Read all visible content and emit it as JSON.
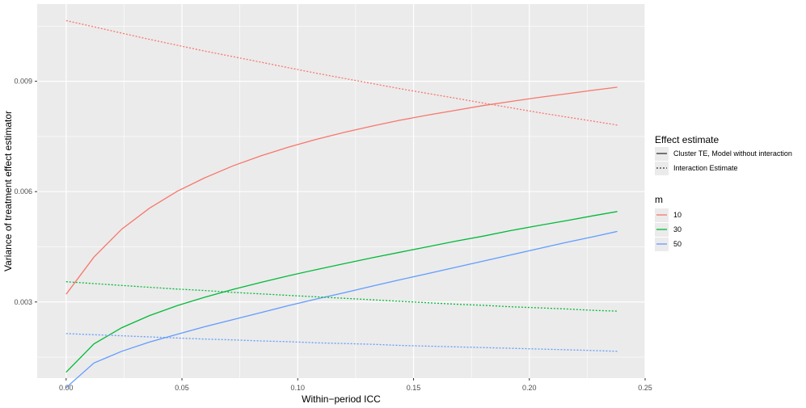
{
  "chart_data": {
    "type": "line",
    "title": "",
    "xlabel": "Within−period ICC",
    "ylabel": "Variance of treatment effect estimator",
    "xlim": [
      -0.0125,
      0.25
    ],
    "ylim": [
      0.00093,
      0.0111
    ],
    "x_ticks": [
      0.0,
      0.05,
      0.1,
      0.15,
      0.2,
      0.25
    ],
    "x_tick_labels": [
      "0.00",
      "0.05",
      "0.10",
      "0.15",
      "0.20",
      "0.25"
    ],
    "y_ticks": [
      0.003,
      0.006,
      0.009
    ],
    "y_tick_labels": [
      "0.003",
      "0.006",
      "0.009"
    ],
    "grid": true,
    "legend_position": "right",
    "x": [
      0.0,
      0.012,
      0.024,
      0.036,
      0.048,
      0.06,
      0.072,
      0.084,
      0.096,
      0.108,
      0.12,
      0.132,
      0.144,
      0.156,
      0.168,
      0.18,
      0.192,
      0.204,
      0.216,
      0.228,
      0.238
    ],
    "series": [
      {
        "linetype": "Cluster TE, Model without interaction",
        "m": "10",
        "color": "#F8766D",
        "dash": "solid",
        "values": [
          0.00321,
          0.00422,
          0.00498,
          0.00555,
          0.00601,
          0.00638,
          0.0067,
          0.00697,
          0.00721,
          0.00742,
          0.00761,
          0.00778,
          0.00794,
          0.00808,
          0.00821,
          0.00834,
          0.00845,
          0.00856,
          0.00866,
          0.00876,
          0.00884
        ]
      },
      {
        "linetype": "Cluster TE, Model without interaction",
        "m": "30",
        "color": "#00BA38",
        "dash": "solid",
        "values": [
          0.00109,
          0.00186,
          0.0023,
          0.00263,
          0.0029,
          0.00313,
          0.00334,
          0.00353,
          0.00371,
          0.00388,
          0.00404,
          0.0042,
          0.00435,
          0.0045,
          0.00465,
          0.00479,
          0.00494,
          0.00508,
          0.00521,
          0.00535,
          0.00546
        ]
      },
      {
        "linetype": "Cluster TE, Model without interaction",
        "m": "50",
        "color": "#619CFF",
        "dash": "solid",
        "values": [
          0.00067,
          0.00134,
          0.00166,
          0.00191,
          0.00212,
          0.00233,
          0.00252,
          0.00271,
          0.0029,
          0.00308,
          0.00325,
          0.00343,
          0.0036,
          0.00377,
          0.00394,
          0.00411,
          0.00428,
          0.00445,
          0.00462,
          0.00478,
          0.00492
        ]
      },
      {
        "linetype": "Interaction Estimate",
        "m": "10",
        "color": "#F8766D",
        "dash": "dotted",
        "values": [
          0.01065,
          0.01048,
          0.01031,
          0.01014,
          0.00998,
          0.00982,
          0.00967,
          0.00952,
          0.00937,
          0.00922,
          0.00908,
          0.00894,
          0.0088,
          0.00867,
          0.00854,
          0.00841,
          0.00828,
          0.00815,
          0.00803,
          0.00791,
          0.00781
        ]
      },
      {
        "linetype": "Interaction Estimate",
        "m": "30",
        "color": "#00BA38",
        "dash": "dotted",
        "values": [
          0.00355,
          0.0035,
          0.00345,
          0.0034,
          0.00335,
          0.00331,
          0.00326,
          0.00322,
          0.00318,
          0.00314,
          0.0031,
          0.00306,
          0.00302,
          0.00298,
          0.00294,
          0.00291,
          0.00287,
          0.00284,
          0.00281,
          0.00277,
          0.00275
        ]
      },
      {
        "linetype": "Interaction Estimate",
        "m": "50",
        "color": "#619CFF",
        "dash": "dotted",
        "values": [
          0.00214,
          0.00211,
          0.00208,
          0.00205,
          0.00202,
          0.00199,
          0.00197,
          0.00194,
          0.00192,
          0.00189,
          0.00187,
          0.00185,
          0.00182,
          0.0018,
          0.00178,
          0.00176,
          0.00174,
          0.00172,
          0.0017,
          0.00168,
          0.00166
        ]
      }
    ]
  },
  "legend": {
    "linetype_title": "Effect estimate",
    "linetype_items": [
      {
        "label": "Cluster TE, Model without interaction",
        "dash": "solid"
      },
      {
        "label": "Interaction Estimate",
        "dash": "dotted"
      }
    ],
    "color_title": "m",
    "color_items": [
      {
        "label": "10",
        "color": "#F8766D"
      },
      {
        "label": "30",
        "color": "#00BA38"
      },
      {
        "label": "50",
        "color": "#619CFF"
      }
    ]
  },
  "colors": {
    "panel_bg": "#EBEBEB",
    "grid_major": "#FFFFFF",
    "tick_text": "#4D4D4D",
    "axis_text": "#000000"
  }
}
